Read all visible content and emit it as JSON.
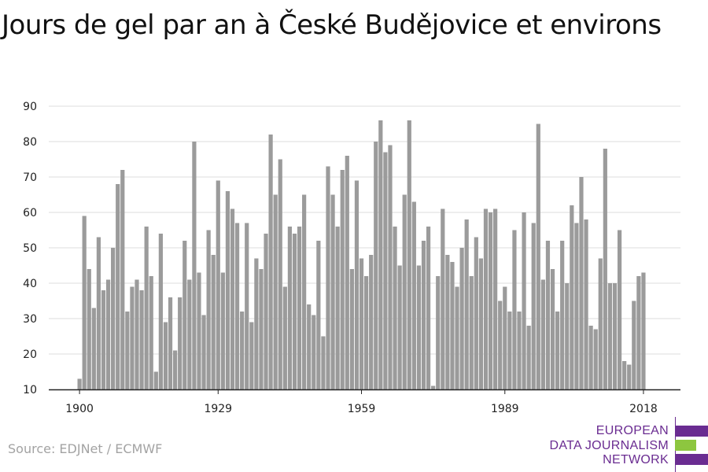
{
  "title": "Jours de gel par an à České Budějovice et environs",
  "source": "Source: EDJNet / ECMWF",
  "logo": {
    "lines": [
      "EUROPEAN",
      "DATA JOURNALISM",
      "NETWORK"
    ],
    "purple": "#6a2c91",
    "green": "#8dc63f"
  },
  "chart_data": {
    "type": "bar",
    "bar_color": "#9b9b9b",
    "x": [
      1900,
      1901,
      1902,
      1903,
      1904,
      1905,
      1906,
      1907,
      1908,
      1909,
      1910,
      1911,
      1912,
      1913,
      1914,
      1915,
      1916,
      1917,
      1918,
      1919,
      1920,
      1921,
      1922,
      1923,
      1924,
      1925,
      1926,
      1927,
      1928,
      1929,
      1930,
      1931,
      1932,
      1933,
      1934,
      1935,
      1936,
      1937,
      1938,
      1939,
      1940,
      1941,
      1942,
      1943,
      1944,
      1945,
      1946,
      1947,
      1948,
      1949,
      1950,
      1951,
      1952,
      1953,
      1954,
      1955,
      1956,
      1957,
      1958,
      1959,
      1960,
      1961,
      1962,
      1963,
      1964,
      1965,
      1966,
      1967,
      1968,
      1969,
      1970,
      1971,
      1972,
      1973,
      1974,
      1975,
      1976,
      1977,
      1978,
      1979,
      1980,
      1981,
      1982,
      1983,
      1984,
      1985,
      1986,
      1987,
      1988,
      1989,
      1990,
      1991,
      1992,
      1993,
      1994,
      1995,
      1996,
      1997,
      1998,
      1999,
      2000,
      2001,
      2002,
      2003,
      2004,
      2005,
      2006,
      2007,
      2008,
      2009,
      2010,
      2011,
      2012,
      2013,
      2014,
      2015,
      2016,
      2017,
      2018
    ],
    "values": [
      13,
      59,
      44,
      33,
      53,
      38,
      41,
      50,
      68,
      72,
      32,
      39,
      41,
      38,
      56,
      42,
      15,
      54,
      29,
      36,
      21,
      36,
      52,
      41,
      80,
      43,
      31,
      55,
      48,
      69,
      43,
      66,
      61,
      57,
      32,
      57,
      29,
      47,
      44,
      54,
      82,
      65,
      75,
      39,
      56,
      54,
      56,
      65,
      34,
      31,
      52,
      25,
      73,
      65,
      56,
      72,
      76,
      44,
      69,
      47,
      42,
      48,
      80,
      86,
      77,
      79,
      56,
      45,
      65,
      86,
      63,
      45,
      52,
      56,
      11,
      42,
      61,
      48,
      46,
      39,
      50,
      58,
      42,
      53,
      47,
      61,
      60,
      61,
      35,
      39,
      32,
      55,
      32,
      60,
      28,
      57,
      85,
      41,
      52,
      44,
      32,
      52,
      40,
      62,
      57,
      70,
      58,
      28,
      27,
      47,
      78,
      40,
      40,
      55,
      18,
      17,
      35,
      42,
      43
    ],
    "xticks": [
      1900,
      1929,
      1959,
      1989,
      2018
    ],
    "yticks": [
      10,
      20,
      30,
      40,
      50,
      60,
      70,
      80,
      90
    ],
    "ylim": [
      10,
      90
    ],
    "grid": true
  }
}
